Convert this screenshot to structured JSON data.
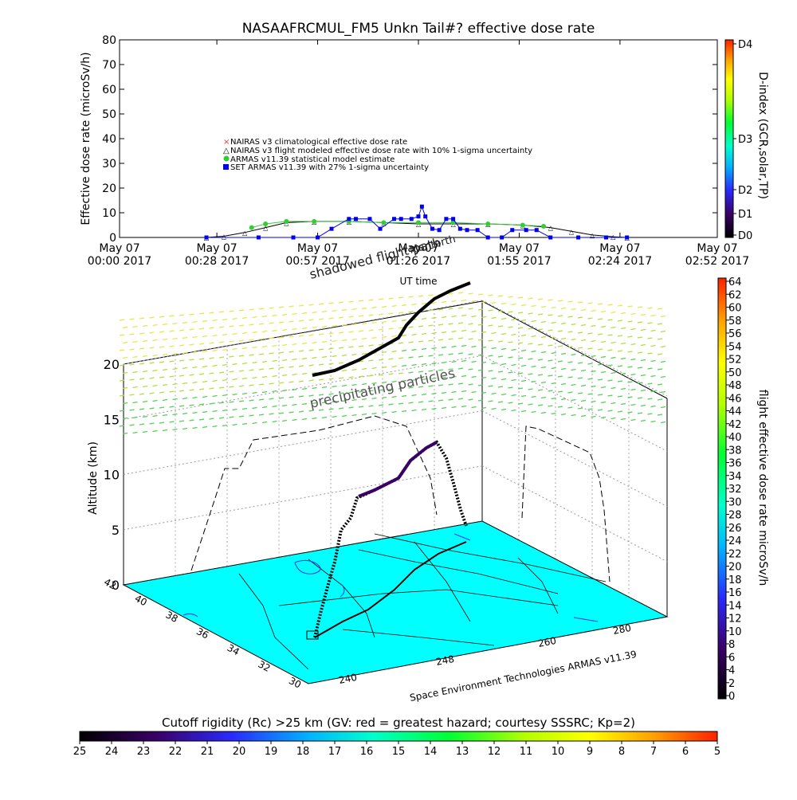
{
  "chart_data": [
    {
      "type": "line",
      "title": "NASAAFRCMUL_FM5 Unkn Tail#? effective dose rate",
      "ylabel": "Effective dose rate (microSv/h)",
      "xlabel": "UT time",
      "ylim": [
        0,
        80
      ],
      "yticks": [
        0,
        10,
        20,
        30,
        40,
        50,
        60,
        70,
        80
      ],
      "xlim": [
        "00:00",
        "02:52"
      ],
      "xticks": [
        {
          "date": "May 07",
          "time": "00:00 2017",
          "min": 0
        },
        {
          "date": "May 07",
          "time": "00:28 2017",
          "min": 28
        },
        {
          "date": "May 07",
          "time": "00:57 2017",
          "min": 57
        },
        {
          "date": "May 07",
          "time": "01:26 2017",
          "min": 86
        },
        {
          "date": "May 07",
          "time": "01:55 2017",
          "min": 115
        },
        {
          "date": "May 07",
          "time": "02:24 2017",
          "min": 144
        },
        {
          "date": "May 07",
          "time": "02:52 2017",
          "min": 172
        }
      ],
      "right_axis": {
        "label": "D-index (GCR,solar,TP)",
        "ticks": [
          {
            "label": "D0",
            "value": 0
          },
          {
            "label": "D1",
            "value": 1
          },
          {
            "label": "D2",
            "value": 2
          },
          {
            "label": "D3",
            "value": 3
          },
          {
            "label": "D4",
            "value": 4
          }
        ]
      },
      "legend": [
        "NAIRAS v3 climatological effective dose rate",
        "NAIRAS v3 flight modeled effective dose rate with 10% 1-sigma uncertainty",
        "ARMAS v11.39 statistical model estimate",
        "SET ARMAS v11.39 with 27% 1-sigma uncertainty"
      ],
      "series": [
        {
          "name": "NAIRAS v3 flight modeled effective dose rate with 10% 1-sigma uncertainty",
          "color": "#000000",
          "x": [
            25,
            30,
            36,
            42,
            48,
            56,
            66,
            76,
            86,
            96,
            106,
            116,
            124,
            130,
            136,
            142,
            146
          ],
          "y": [
            0,
            0.5,
            2,
            4,
            6,
            6.5,
            6.5,
            6,
            5.5,
            5.5,
            5.5,
            5,
            4,
            2.5,
            1,
            0.3,
            0
          ]
        },
        {
          "name": "ARMAS v11.39 statistical model estimate",
          "color": "#33cc33",
          "x": [
            38,
            42,
            48,
            56,
            66,
            76,
            86,
            96,
            106,
            116,
            122
          ],
          "y": [
            4,
            5.5,
            6.5,
            6.5,
            6.5,
            6,
            6,
            6,
            5.5,
            5,
            4.5
          ]
        },
        {
          "name": "SET ARMAS v11.39 with 27% 1-sigma uncertainty",
          "color": "#0000ee",
          "x": [
            25,
            40,
            50,
            57,
            61,
            66,
            68,
            72,
            75,
            79,
            81,
            84,
            86,
            87,
            88,
            90,
            92,
            94,
            96,
            98,
            100,
            103,
            106,
            110,
            113,
            117,
            120,
            124,
            132,
            140,
            146
          ],
          "y": [
            0,
            0,
            0,
            0,
            3.5,
            7.5,
            7.5,
            7.5,
            3.5,
            7.5,
            7.5,
            7.5,
            8.5,
            12.5,
            8.5,
            3.5,
            3,
            7.5,
            7.5,
            3.5,
            3,
            3,
            0,
            0,
            3,
            3,
            3,
            0,
            0,
            0,
            0
          ]
        }
      ]
    },
    {
      "type": "scatter",
      "title": "",
      "zlabel": "Altitude (km)",
      "zlim": [
        0,
        20
      ],
      "zticks": [
        0,
        5,
        10,
        15,
        20
      ],
      "lat_ticks": [
        30,
        32,
        34,
        36,
        38,
        40,
        42
      ],
      "lon_ticks": [
        240,
        245,
        250,
        255,
        260,
        265,
        270,
        275,
        280
      ],
      "lon_labels": [
        "240",
        "248",
        "260",
        "280"
      ],
      "annotations": [
        "precipitating particles",
        "shadowed flight path",
        "Mantorth"
      ],
      "credit": "Space Environment Technologies ARMAS v11.39",
      "colorbar": {
        "label": "flight effective dose rate microSv/h",
        "ticks": [
          0,
          2,
          4,
          6,
          8,
          10,
          12,
          14,
          16,
          18,
          20,
          22,
          24,
          26,
          28,
          30,
          32,
          34,
          36,
          38,
          40,
          42,
          44,
          46,
          48,
          50,
          52,
          54,
          56,
          58,
          60,
          62,
          64
        ]
      },
      "flight_track": {
        "lon": [
          242.5,
          243,
          244,
          245,
          246.5,
          248,
          250,
          252,
          254,
          256,
          258,
          260,
          262,
          264
        ],
        "lat": [
          34.5,
          35.5,
          36.5,
          37.2,
          37.8,
          38.2,
          38.5,
          38.8,
          39.1,
          39.4,
          39.7,
          40.0,
          40.3,
          40.6
        ],
        "alt_km": [
          0.5,
          4,
          9,
          11,
          11.5,
          11.5,
          11.5,
          11.5,
          11.5,
          11.5,
          11.5,
          10.5,
          6,
          1
        ]
      }
    }
  ],
  "bottom_colorbar": {
    "label": "Cutoff rigidity (Rc) >25 km (GV: red = greatest hazard; courtesy SSSRC; Kp=2)",
    "ticks": [
      "25",
      "24",
      "23",
      "22",
      "21",
      "20",
      "19",
      "18",
      "17",
      "16",
      "15",
      "14",
      "13",
      "12",
      "11",
      "10",
      "9",
      "8",
      "7",
      "6",
      "5"
    ]
  },
  "colors": {
    "ground": "#00ffff",
    "rainbow": [
      "#000000",
      "#3a0066",
      "#2a2aff",
      "#00b4ff",
      "#00ffcc",
      "#00ff33",
      "#b4ff00",
      "#ffff00",
      "#ffa000",
      "#ff2000"
    ]
  }
}
